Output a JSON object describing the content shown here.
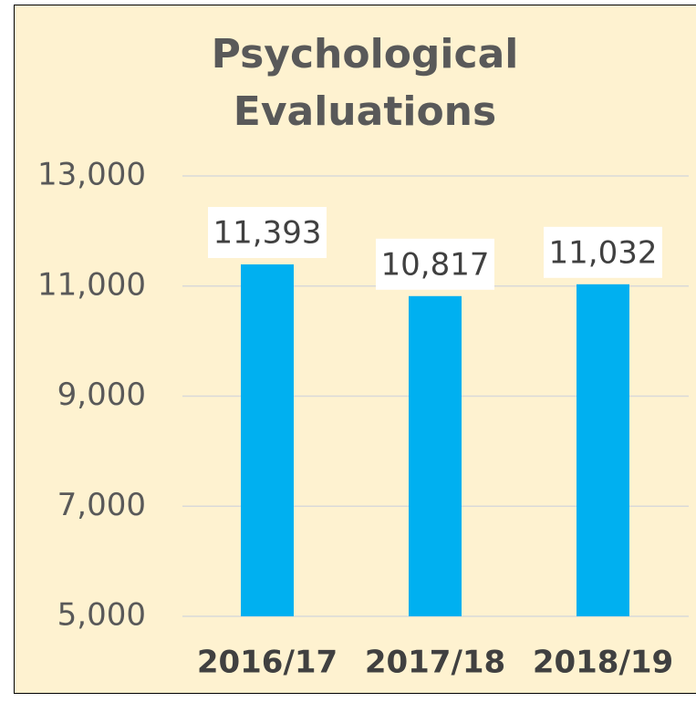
{
  "chart_data": {
    "type": "bar",
    "title": "Psychological Evaluations",
    "categories": [
      "2016/17",
      "2017/18",
      "2018/19"
    ],
    "values": [
      11393,
      10817,
      11032
    ],
    "value_labels": [
      "11,393",
      "10,817",
      "11,032"
    ],
    "color": "#00b0f0",
    "ylim": [
      5000,
      13000
    ],
    "yticks": [
      {
        "value": 5000,
        "label": "5,000"
      },
      {
        "value": 7000,
        "label": "7,000"
      },
      {
        "value": 9000,
        "label": "9,000"
      },
      {
        "value": 11000,
        "label": "11,000"
      },
      {
        "value": 13000,
        "label": "13,000"
      }
    ],
    "grid": true
  }
}
